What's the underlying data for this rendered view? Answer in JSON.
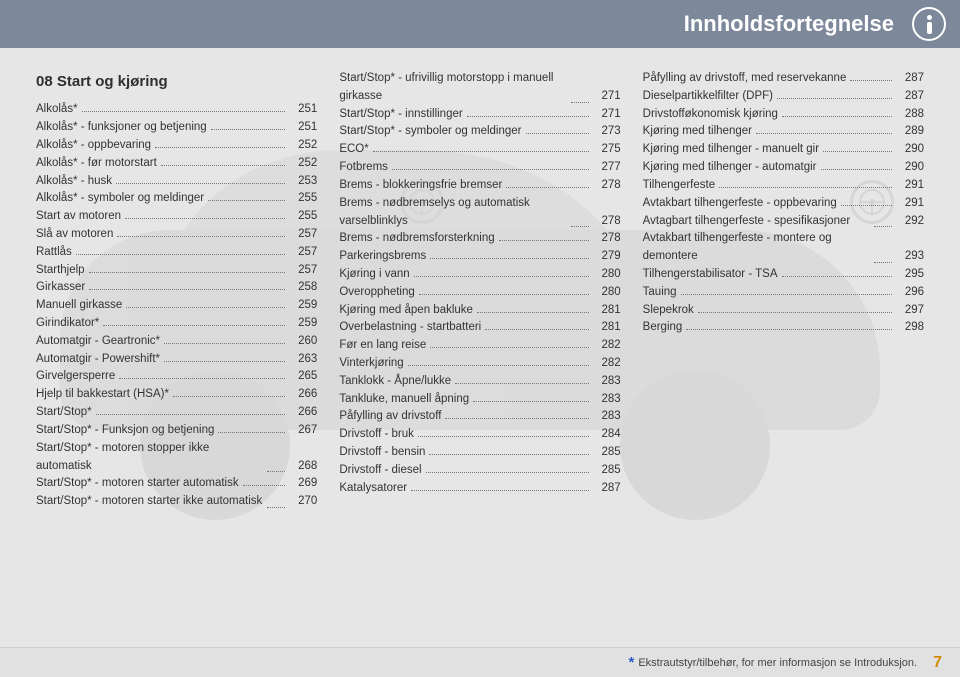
{
  "header": {
    "title": "Innholdsfortegnelse"
  },
  "section": {
    "title": "08  Start og kjøring"
  },
  "columns": [
    [
      {
        "label": "Alkolås*",
        "page": 251
      },
      {
        "label": "Alkolås* - funksjoner og betjening",
        "page": 251
      },
      {
        "label": "Alkolås* - oppbevaring",
        "page": 252
      },
      {
        "label": "Alkolås* - før motorstart",
        "page": 252
      },
      {
        "label": "Alkolås* - husk",
        "page": 253
      },
      {
        "label": "Alkolås* - symboler og meldinger",
        "page": 255
      },
      {
        "label": "Start av motoren",
        "page": 255
      },
      {
        "label": "Slå av motoren",
        "page": 257
      },
      {
        "label": "Rattlås",
        "page": 257
      },
      {
        "label": "Starthjelp",
        "page": 257
      },
      {
        "label": "Girkasser",
        "page": 258
      },
      {
        "label": "Manuell girkasse",
        "page": 259
      },
      {
        "label": "Girindikator*",
        "page": 259
      },
      {
        "label": "Automatgir - Geartronic*",
        "page": 260
      },
      {
        "label": "Automatgir - Powershift*",
        "page": 263
      },
      {
        "label": "Girvelgersperre",
        "page": 265
      },
      {
        "label": "Hjelp til bakkestart (HSA)*",
        "page": 266
      },
      {
        "label": "Start/Stop*",
        "page": 266
      },
      {
        "label": "Start/Stop* - Funksjon og betjening",
        "page": 267
      },
      {
        "label": "Start/Stop* - motoren stopper ikke automatisk",
        "page": 268,
        "multi": true
      },
      {
        "label": "Start/Stop* - motoren starter automatisk",
        "page": 269
      },
      {
        "label": "Start/Stop* - motoren starter ikke automatisk",
        "page": 270,
        "multi": true
      }
    ],
    [
      {
        "label": "Start/Stop* - ufrivillig motorstopp i manuell girkasse",
        "page": 271,
        "multi": true
      },
      {
        "label": "Start/Stop* - innstillinger",
        "page": 271
      },
      {
        "label": "Start/Stop* - symboler og meldinger",
        "page": 273
      },
      {
        "label": "ECO*",
        "page": 275
      },
      {
        "label": "Fotbrems",
        "page": 277
      },
      {
        "label": "Brems - blokkeringsfrie bremser",
        "page": 278
      },
      {
        "label": "Brems - nødbremselys og automatisk varselblinklys",
        "page": 278,
        "multi": true
      },
      {
        "label": "Brems - nødbremsforsterkning",
        "page": 278
      },
      {
        "label": "Parkeringsbrems",
        "page": 279
      },
      {
        "label": "Kjøring i vann",
        "page": 280
      },
      {
        "label": "Overoppheting",
        "page": 280
      },
      {
        "label": "Kjøring med åpen bakluke",
        "page": 281
      },
      {
        "label": "Overbelastning - startbatteri",
        "page": 281
      },
      {
        "label": "Før en lang reise",
        "page": 282
      },
      {
        "label": "Vinterkjøring",
        "page": 282
      },
      {
        "label": "Tanklokk - Åpne/lukke",
        "page": 283
      },
      {
        "label": "Tankluke, manuell åpning",
        "page": 283
      },
      {
        "label": "Påfylling av drivstoff",
        "page": 283
      },
      {
        "label": "Drivstoff - bruk",
        "page": 284
      },
      {
        "label": "Drivstoff - bensin",
        "page": 285
      },
      {
        "label": "Drivstoff - diesel",
        "page": 285
      },
      {
        "label": "Katalysatorer",
        "page": 287
      }
    ],
    [
      {
        "label": "Påfylling av drivstoff, med reservekanne",
        "page": 287
      },
      {
        "label": "Dieselpartikkelfilter (DPF)",
        "page": 287
      },
      {
        "label": "Drivstofføkonomisk kjøring",
        "page": 288
      },
      {
        "label": "Kjøring med tilhenger",
        "page": 289
      },
      {
        "label": "Kjøring med tilhenger - manuelt gir",
        "page": 290
      },
      {
        "label": "Kjøring med tilhenger - automatgir",
        "page": 290
      },
      {
        "label": "Tilhengerfeste",
        "page": 291
      },
      {
        "label": "Avtakbart tilhengerfeste - oppbevaring",
        "page": 291
      },
      {
        "label": "Avtagbart tilhengerfeste - spesifikasjoner",
        "page": 292,
        "multi": true
      },
      {
        "label": "Avtakbart tilhengerfeste - montere og demontere",
        "page": 293,
        "multi": true
      },
      {
        "label": "Tilhengerstabilisator - TSA",
        "page": 295
      },
      {
        "label": "Tauing",
        "page": 296
      },
      {
        "label": "Slepekrok",
        "page": 297
      },
      {
        "label": "Berging",
        "page": 298
      }
    ]
  ],
  "footer": {
    "note_prefix": "*",
    "note_text": "Ekstrautstyr/tilbehør, for mer informasjon se Introduksjon.",
    "page_number": "7"
  },
  "styling": {
    "page_bg": "#e6e6e6",
    "header_bg": "#7d899b",
    "header_text": "#ffffff",
    "body_text": "#333333",
    "section_title_fontsize": 15,
    "body_fontsize": 11.5,
    "footnote_star_color": "#2b57c5",
    "page_number_color": "#d08a00",
    "watermark_gray": "#c8c8c8",
    "dot_leader_color": "#777777"
  }
}
